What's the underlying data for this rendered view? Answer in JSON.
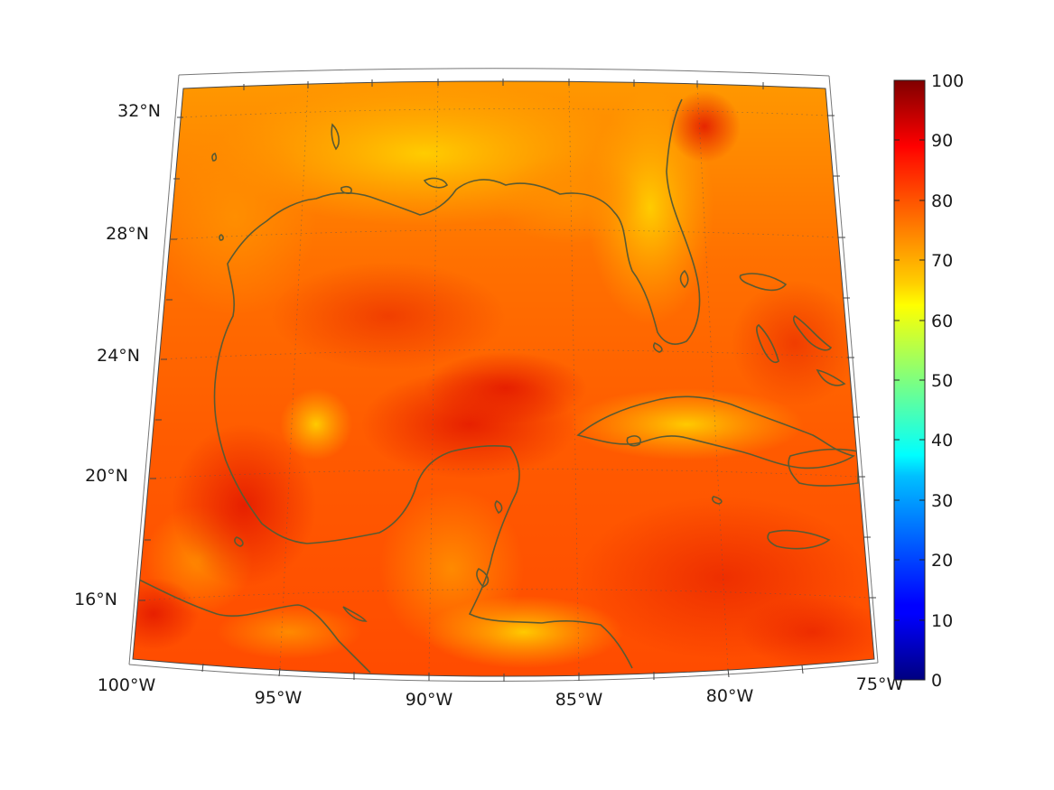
{
  "map": {
    "lon_labels": [
      "100°W",
      "95°W",
      "90°W",
      "85°W",
      "80°W",
      "75°W"
    ],
    "lat_labels": [
      "16°N",
      "20°N",
      "24°N",
      "28°N",
      "32°N"
    ],
    "lon_range": [
      -100,
      -75
    ],
    "lat_range": [
      14,
      33
    ],
    "projection": "conic",
    "grid": "dotted",
    "coastline_color": "#5a5a32"
  },
  "colorbar": {
    "ticks": [
      "0",
      "10",
      "20",
      "30",
      "40",
      "50",
      "60",
      "70",
      "80",
      "90",
      "100"
    ],
    "range": [
      0,
      100
    ],
    "colormap": "jet",
    "placement": "right"
  },
  "field": {
    "dominant_values_range": [
      68,
      90
    ],
    "colors": {
      "low": "#ffa500",
      "mid": "#ff6a00",
      "high": "#e81c00"
    }
  }
}
